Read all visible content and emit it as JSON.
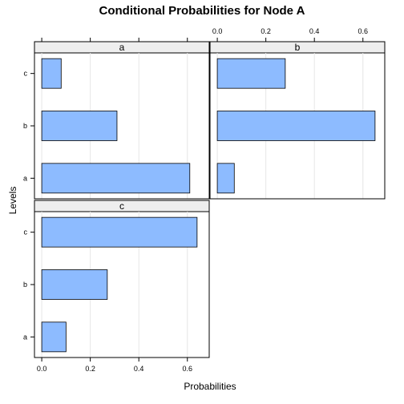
{
  "chart_data": {
    "type": "bar",
    "orientation": "horizontal",
    "layout": "trellis",
    "title": "Conditional Probabilities for Node A",
    "xlabel": "Probabilities",
    "ylabel": "Levels",
    "xlim": [
      -0.03,
      0.69
    ],
    "x_ticks": [
      0.0,
      0.2,
      0.4,
      0.6
    ],
    "x_tick_labels": [
      "0.0",
      "0.2",
      "0.4",
      "0.6"
    ],
    "categories": [
      "a",
      "b",
      "c"
    ],
    "bar_color": "#8DBBFF",
    "strip_color": "#EEEEEE",
    "grid": "vertical",
    "panels": [
      {
        "name": "a",
        "values": [
          0.61,
          0.31,
          0.08
        ]
      },
      {
        "name": "b",
        "values": [
          0.07,
          0.65,
          0.28
        ]
      },
      {
        "name": "c",
        "values": [
          0.1,
          0.27,
          0.64
        ]
      }
    ]
  }
}
